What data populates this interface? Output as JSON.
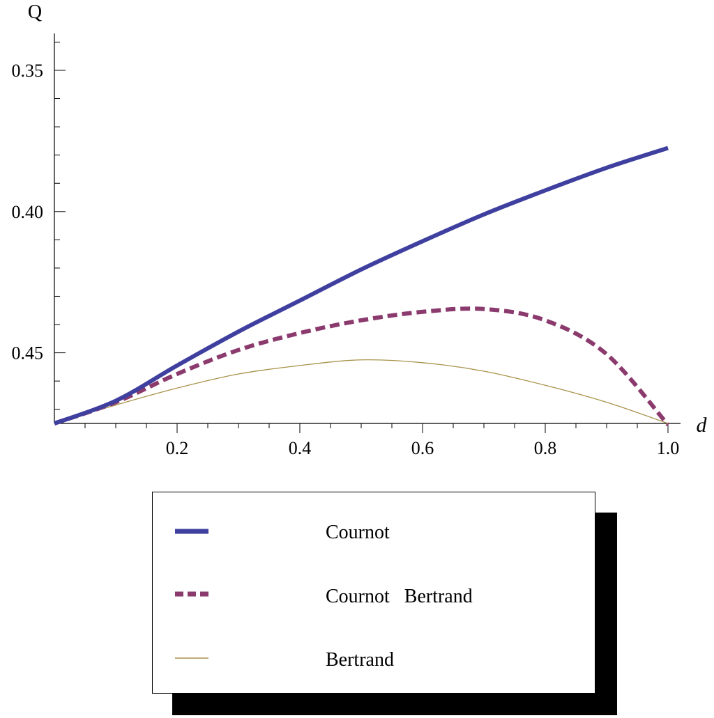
{
  "chart_data": {
    "type": "line",
    "xlabel": "d",
    "ylabel": "Q",
    "xlim": [
      0,
      1.0
    ],
    "ylim": [
      0.475,
      0.3325
    ],
    "y_axis_reversed": true,
    "x_ticks": [
      "0.2",
      "0.4",
      "0.6",
      "0.8",
      "1.0"
    ],
    "x_tick_values": [
      0.2,
      0.4,
      0.6,
      0.8,
      1.0
    ],
    "y_ticks": [
      "0.35",
      "0.40",
      "0.45"
    ],
    "y_tick_values": [
      0.35,
      0.4,
      0.45
    ],
    "grid": false,
    "legend_position": "bottom",
    "x": [
      0,
      0.1,
      0.2,
      0.3,
      0.4,
      0.5,
      0.6,
      0.7,
      0.8,
      0.9,
      1.0
    ],
    "series": [
      {
        "name": "Cournot",
        "color": "#3f3f9f",
        "style": "solid-thick",
        "values": [
          0.475,
          0.467,
          0.4545,
          0.4425,
          0.4315,
          0.4205,
          0.4105,
          0.401,
          0.3925,
          0.3845,
          0.3775
        ]
      },
      {
        "name": "Cournot   Bertrand",
        "color": "#8b3a6e",
        "style": "dashed",
        "values": [
          0.475,
          0.4675,
          0.4575,
          0.449,
          0.443,
          0.4385,
          0.4355,
          0.4345,
          0.4385,
          0.4505,
          0.4755
        ]
      },
      {
        "name": "Bertrand",
        "color": "#a8924a",
        "style": "thin",
        "values": [
          0.475,
          0.4685,
          0.4625,
          0.4575,
          0.4545,
          0.4525,
          0.4535,
          0.4565,
          0.4615,
          0.4675,
          0.475
        ]
      }
    ]
  }
}
